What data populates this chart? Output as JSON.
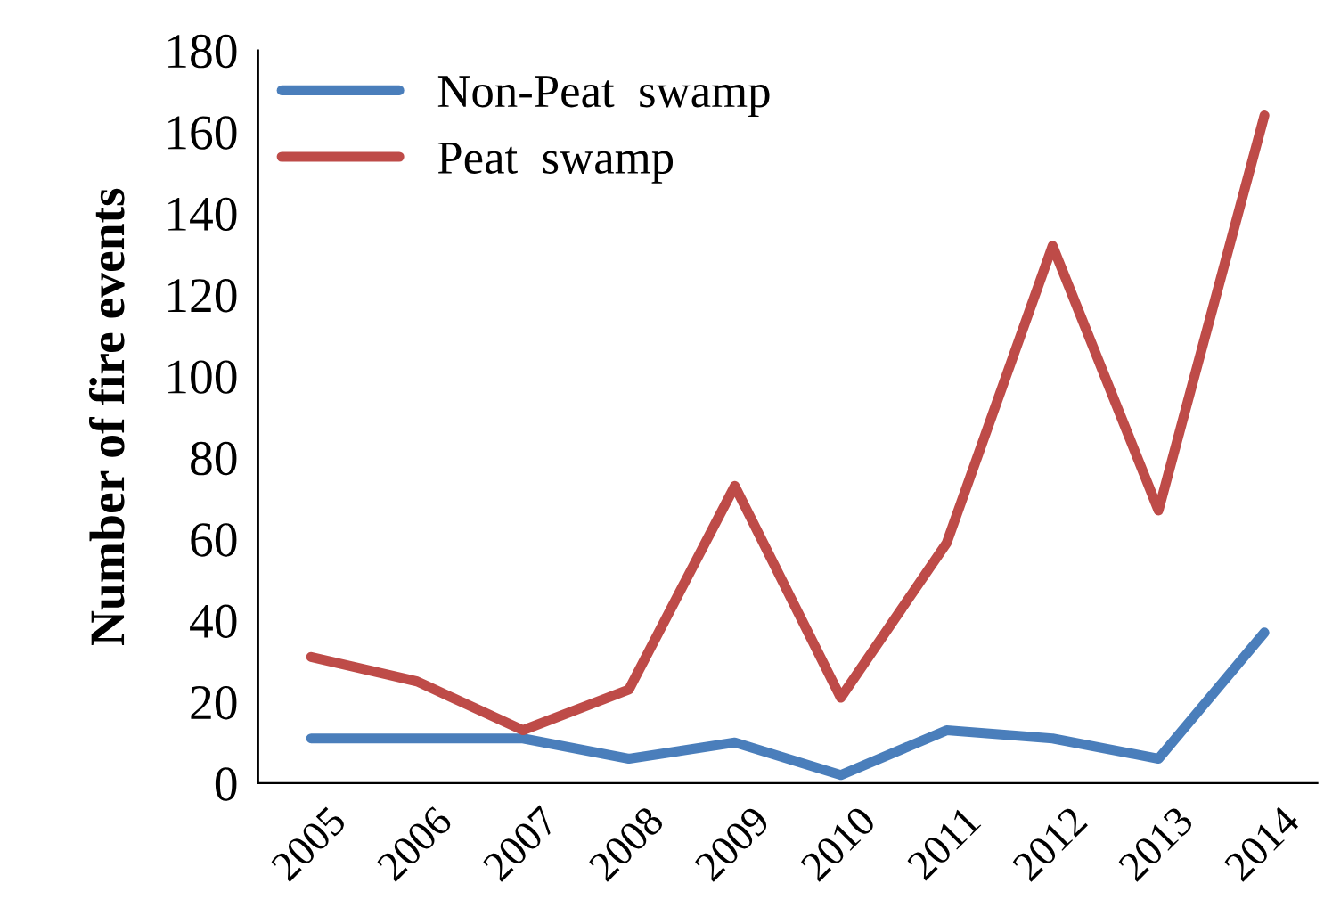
{
  "chart_data": {
    "type": "line",
    "ylabel": "Number of fire events",
    "categories": [
      "2005",
      "2006",
      "2007",
      "2008",
      "2009",
      "2010",
      "2011",
      "2012",
      "2013",
      "2014"
    ],
    "series": [
      {
        "name": "Non-Peat  swamp",
        "color": "#4a7ebb",
        "values": [
          11,
          11,
          11,
          6,
          10,
          2,
          13,
          11,
          6,
          37
        ]
      },
      {
        "name": "Peat  swamp",
        "color": "#be4b48",
        "values": [
          31,
          25,
          13,
          23,
          73,
          21,
          59,
          132,
          67,
          164
        ]
      }
    ],
    "ylim": [
      0,
      180
    ],
    "yticks": [
      0,
      20,
      40,
      60,
      80,
      100,
      120,
      140,
      160,
      180
    ],
    "grid": false,
    "legend": "top left",
    "marker": "none",
    "line_style": "solid"
  }
}
